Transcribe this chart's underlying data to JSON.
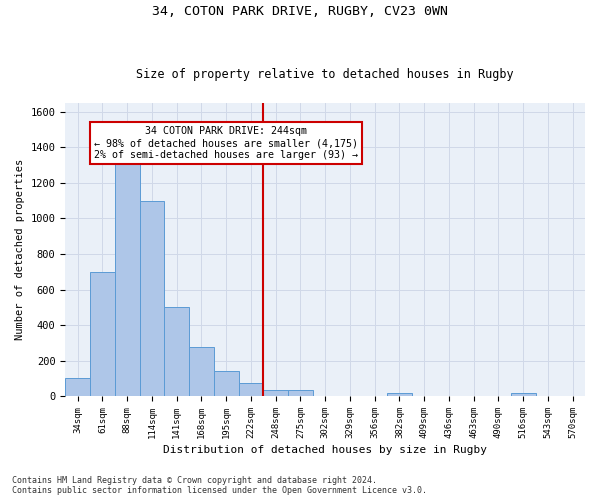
{
  "title1": "34, COTON PARK DRIVE, RUGBY, CV23 0WN",
  "title2": "Size of property relative to detached houses in Rugby",
  "xlabel": "Distribution of detached houses by size in Rugby",
  "ylabel": "Number of detached properties",
  "footer1": "Contains HM Land Registry data © Crown copyright and database right 2024.",
  "footer2": "Contains public sector information licensed under the Open Government Licence v3.0.",
  "bar_labels": [
    "34sqm",
    "61sqm",
    "88sqm",
    "114sqm",
    "141sqm",
    "168sqm",
    "195sqm",
    "222sqm",
    "248sqm",
    "275sqm",
    "302sqm",
    "329sqm",
    "356sqm",
    "382sqm",
    "409sqm",
    "436sqm",
    "463sqm",
    "490sqm",
    "516sqm",
    "543sqm",
    "570sqm"
  ],
  "bar_values": [
    100,
    700,
    1330,
    1100,
    500,
    275,
    140,
    75,
    35,
    35,
    0,
    0,
    0,
    15,
    0,
    0,
    0,
    0,
    20,
    0,
    0
  ],
  "bar_color": "#aec6e8",
  "bar_edge_color": "#5b9bd5",
  "grid_color": "#d0d8e8",
  "background_color": "#eaf0f8",
  "vline_index": 8,
  "vline_color": "#cc0000",
  "annotation_line1": "34 COTON PARK DRIVE: 244sqm",
  "annotation_line2": "← 98% of detached houses are smaller (4,175)",
  "annotation_line3": "2% of semi-detached houses are larger (93) →",
  "annotation_box_color": "#cc0000",
  "ylim": [
    0,
    1650
  ],
  "yticks": [
    0,
    200,
    400,
    600,
    800,
    1000,
    1200,
    1400,
    1600
  ]
}
